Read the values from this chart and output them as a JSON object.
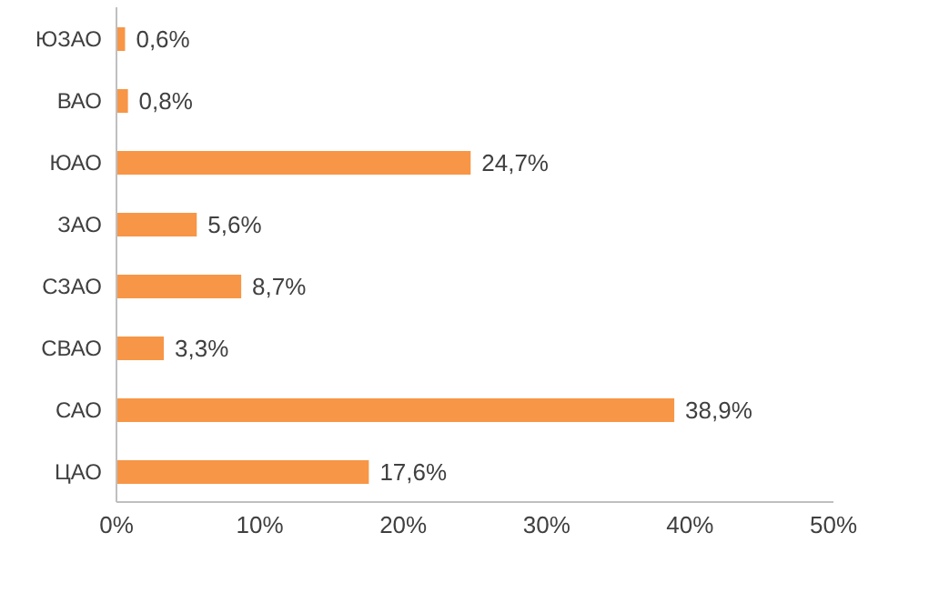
{
  "chart_data": {
    "type": "bar",
    "orientation": "horizontal",
    "categories": [
      "ЮЗАО",
      "ВАО",
      "ЮАО",
      "ЗАО",
      "СЗАО",
      "СВАО",
      "САО",
      "ЦАО"
    ],
    "values": [
      0.6,
      0.8,
      24.7,
      5.6,
      8.7,
      3.3,
      38.9,
      17.6
    ],
    "value_labels": [
      "0,6%",
      "0,8%",
      "24,7%",
      "5,6%",
      "8,7%",
      "3,3%",
      "38,9%",
      "17,6%"
    ],
    "color": "#f79646",
    "xlim": [
      0,
      50
    ],
    "xticks": [
      {
        "value": 0,
        "label": "0%"
      },
      {
        "value": 10,
        "label": "10%"
      },
      {
        "value": 20,
        "label": "20%"
      },
      {
        "value": 30,
        "label": "30%"
      },
      {
        "value": 40,
        "label": "40%"
      },
      {
        "value": 50,
        "label": "50%"
      }
    ],
    "grid": false,
    "legend": false
  }
}
